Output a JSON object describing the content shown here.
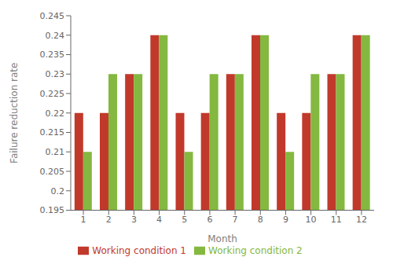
{
  "chart_data": {
    "type": "bar",
    "categories": [
      "1",
      "2",
      "3",
      "4",
      "5",
      "6",
      "7",
      "8",
      "9",
      "10",
      "11",
      "12"
    ],
    "series": [
      {
        "name": "Working condition 1",
        "color": "#C1392B",
        "values": [
          0.22,
          0.22,
          0.23,
          0.24,
          0.22,
          0.22,
          0.23,
          0.24,
          0.22,
          0.22,
          0.23,
          0.24
        ]
      },
      {
        "name": "Working condition 2",
        "color": "#84B840",
        "values": [
          0.21,
          0.23,
          0.23,
          0.24,
          0.21,
          0.23,
          0.23,
          0.24,
          0.21,
          0.23,
          0.23,
          0.24
        ]
      }
    ],
    "xlabel": "Month",
    "ylabel": "Failure reduction rate",
    "ylim": [
      0.195,
      0.245
    ],
    "yticks": [
      0.195,
      0.2,
      0.205,
      0.21,
      0.215,
      0.22,
      0.225,
      0.23,
      0.235,
      0.24,
      0.245
    ],
    "grid": false,
    "legend": "bottom"
  }
}
